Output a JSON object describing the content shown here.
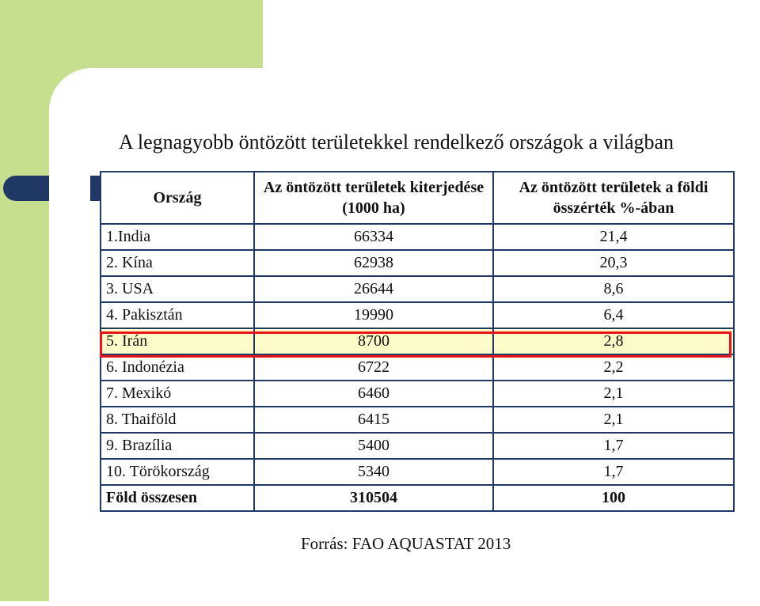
{
  "title": "A legnagyobb öntözött területekkel rendelkező országok a világban",
  "table": {
    "headers": {
      "country": "Ország",
      "area": "Az öntözött területek kiterjedése (1000 ha)",
      "share": "Az öntözött területek a földi összérték %-ában"
    },
    "rows": [
      {
        "country": "1.India",
        "area": "66334",
        "share": "21,4"
      },
      {
        "country": "2. Kína",
        "area": "62938",
        "share": "20,3"
      },
      {
        "country": "3. USA",
        "area": "26644",
        "share": "8,6"
      },
      {
        "country": "4. Pakisztán",
        "area": "19990",
        "share": "6,4"
      },
      {
        "country": "5. Irán",
        "area": "8700",
        "share": "2,8"
      },
      {
        "country": "6. Indonézia",
        "area": "6722",
        "share": "2,2"
      },
      {
        "country": "7. Mexikó",
        "area": "6460",
        "share": "2,1"
      },
      {
        "country": "8. Thaiföld",
        "area": "6415",
        "share": "2,1"
      },
      {
        "country": "9. Brazília",
        "area": "5400",
        "share": "1,7"
      },
      {
        "country": "10. Törökország",
        "area": "5340",
        "share": "1,7"
      }
    ],
    "total": {
      "country": "Föld összesen",
      "area": "310504",
      "share": "100"
    },
    "highlighted_row_color": "#e8141b"
  },
  "source": "Forrás: FAO AQUASTAT 2013"
}
